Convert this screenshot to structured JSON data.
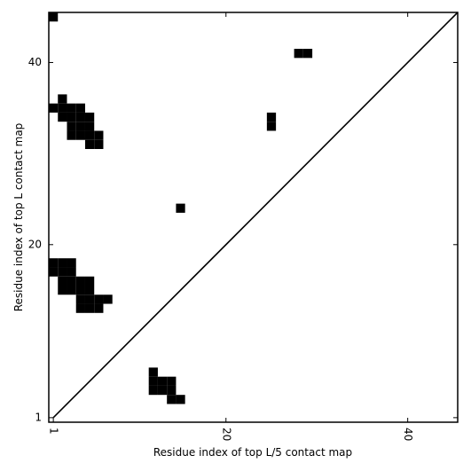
{
  "chart_data": {
    "type": "scatter",
    "marker": "square",
    "color": "#000000",
    "xlabel": "Residue index of top L/5 contact map",
    "ylabel": "Residue index of top L contact map",
    "xlim": [
      0.5,
      45.5
    ],
    "ylim": [
      0.5,
      45.5
    ],
    "xticks": [
      1,
      20,
      40
    ],
    "yticks": [
      1,
      20,
      40
    ],
    "x": [
      1,
      28,
      29,
      25,
      25,
      15,
      2,
      1,
      2,
      3,
      4,
      2,
      3,
      4,
      5,
      3,
      4,
      5,
      3,
      4,
      5,
      6,
      5,
      6,
      1,
      2,
      3,
      1,
      2,
      3,
      2,
      3,
      4,
      5,
      2,
      3,
      4,
      5,
      4,
      5,
      6,
      7,
      4,
      5,
      6,
      12,
      12,
      13,
      14,
      12,
      13,
      14,
      14,
      15
    ],
    "y": [
      45,
      41,
      41,
      34,
      33,
      24,
      36,
      35,
      35,
      35,
      35,
      34,
      34,
      34,
      34,
      33,
      33,
      33,
      32,
      32,
      32,
      32,
      31,
      31,
      18,
      18,
      18,
      17,
      17,
      17,
      16,
      16,
      16,
      16,
      15,
      15,
      15,
      15,
      14,
      14,
      14,
      14,
      13,
      13,
      13,
      6,
      5,
      5,
      5,
      4,
      4,
      4,
      3,
      3
    ],
    "line": {
      "x": [
        1,
        45.5
      ],
      "y": [
        1,
        45.5
      ],
      "color": "#000000"
    }
  }
}
